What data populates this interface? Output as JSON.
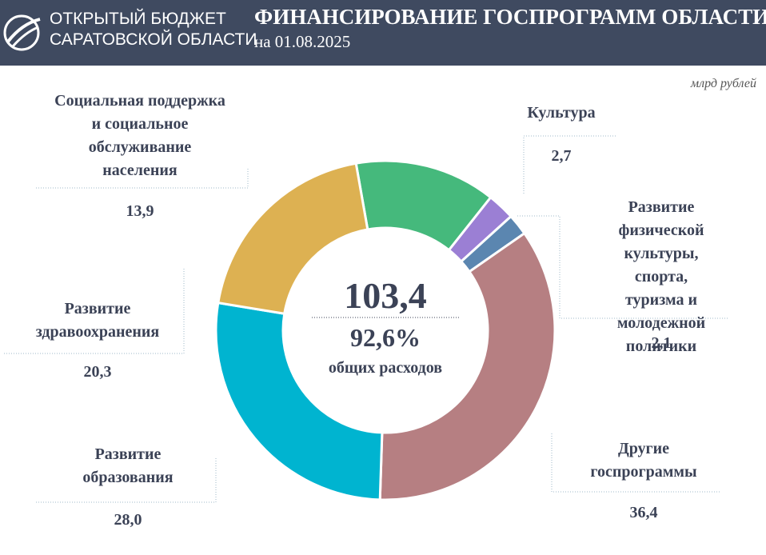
{
  "header": {
    "brand_line1": "ОТКРЫТЫЙ БЮДЖЕТ",
    "brand_line2": "САРАТОВСКОЙ ОБЛАСТИ"
  },
  "chart_data": {
    "type": "donut",
    "title": "ФИНАНСИРОВАНИЕ ГОСПРОГРАММ ОБЛАСТИ",
    "subtitle": "на 01.08.2025",
    "unit": "млрд рублей",
    "categories": [
      "Социальная поддержка\nи социальное\nобслуживание\nнаселения",
      "Культура",
      "Развитие физической\nкультуры, спорта,\nтуризма и\nмолодежной\nполитики",
      "Другие\nгоспрограммы",
      "Развитие\nобразования",
      "Развитие\nздравоохранения"
    ],
    "values": [
      13.9,
      2.7,
      2.1,
      36.4,
      28.0,
      20.3
    ],
    "value_labels": [
      "13,9",
      "2,7",
      "2,1",
      "36,4",
      "28,0",
      "20,3"
    ],
    "colors": [
      "#45b97c",
      "#9b7fd4",
      "#5b86b0",
      "#b67f82",
      "#00b4d0",
      "#ddb152"
    ],
    "start_angle": -10,
    "total": {
      "value": 103.4,
      "label": "103,4"
    },
    "share": {
      "value": 92.6,
      "label": "92,6%"
    },
    "share_caption": "общих расходов"
  }
}
